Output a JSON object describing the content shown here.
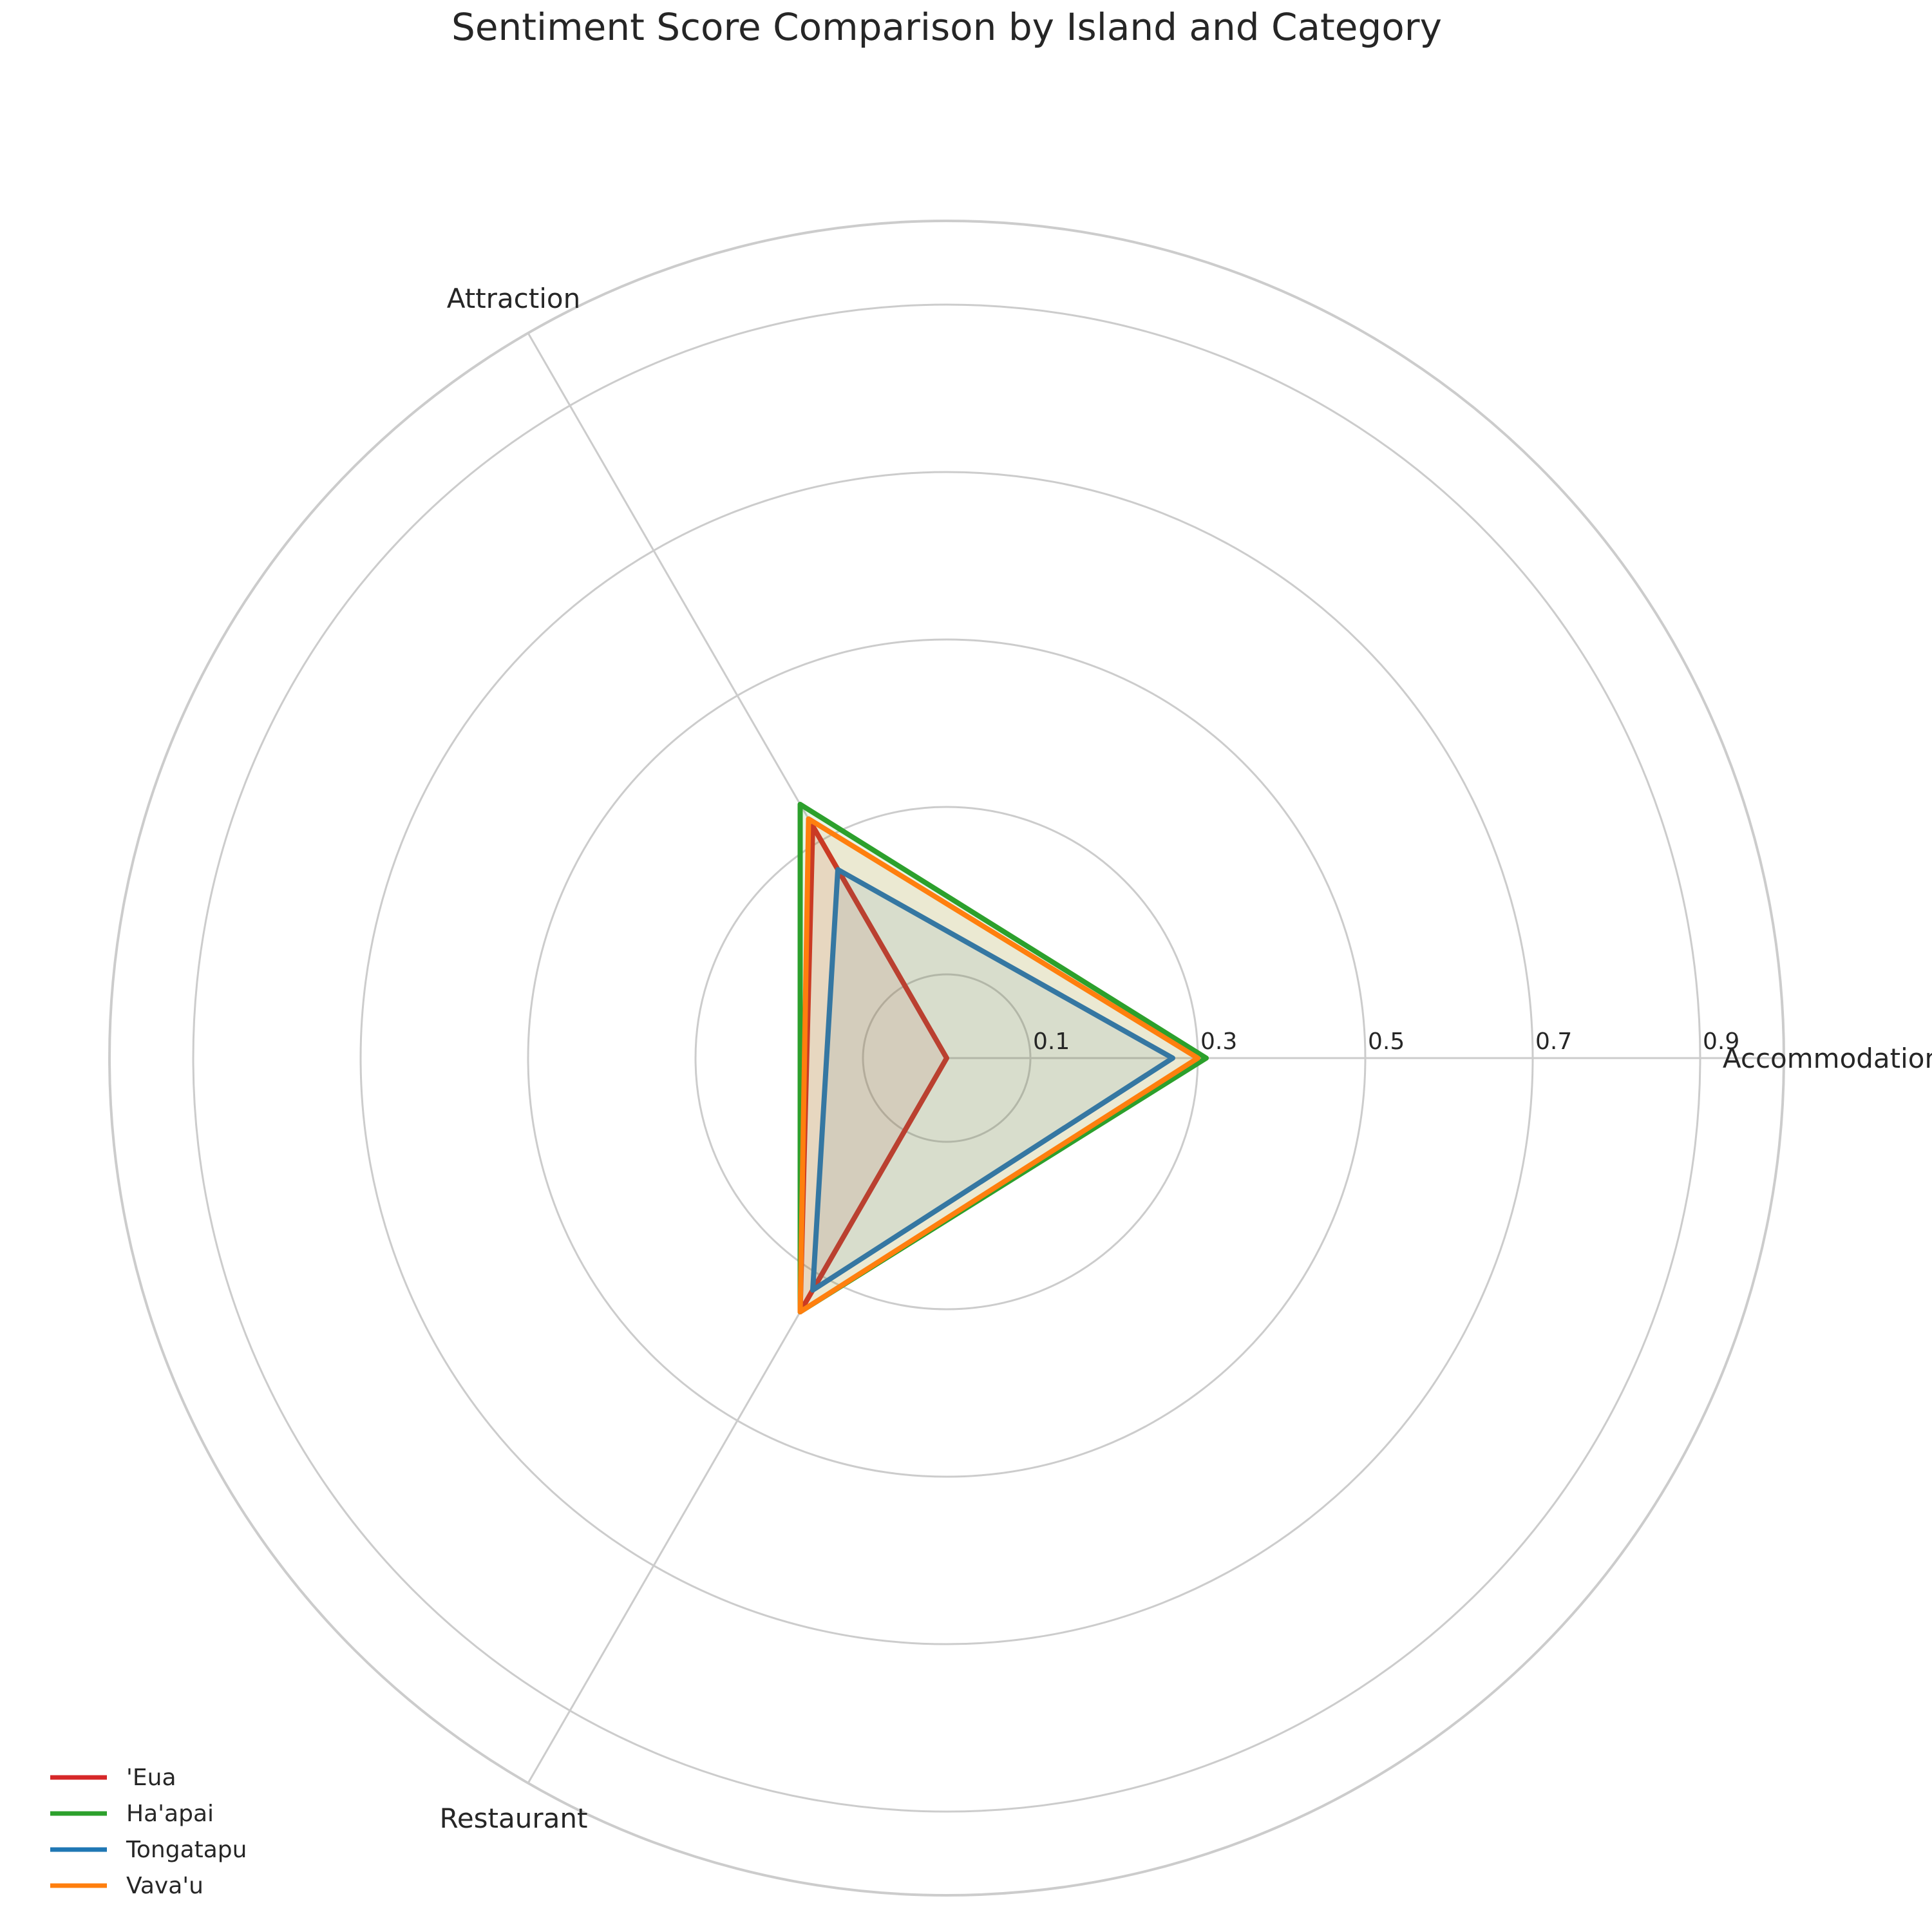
{
  "chart_data": {
    "type": "radar",
    "title": "Sentiment Score Comparison by Island and Category",
    "categories": [
      "Accommodation",
      "Attraction",
      "Restaurant"
    ],
    "rlim": [
      0,
      1.0
    ],
    "ticks": [
      0.1,
      0.3,
      0.5,
      0.7,
      0.9
    ],
    "tick_labels": [
      "0.1",
      "0.3",
      "0.5",
      "0.7",
      "0.9"
    ],
    "grid": true,
    "legend_position": "lower-left",
    "series": [
      {
        "name": "'Eua",
        "color": "#d62728",
        "values": [
          0.0,
          0.32,
          0.35
        ]
      },
      {
        "name": "Ha'apai",
        "color": "#2ca02c",
        "values": [
          0.31,
          0.35,
          0.35
        ]
      },
      {
        "name": "Tongatapu",
        "color": "#1f77b4",
        "values": [
          0.27,
          0.26,
          0.32
        ]
      },
      {
        "name": "Vava'u",
        "color": "#ff7f0e",
        "values": [
          0.3,
          0.33,
          0.35
        ]
      }
    ]
  }
}
